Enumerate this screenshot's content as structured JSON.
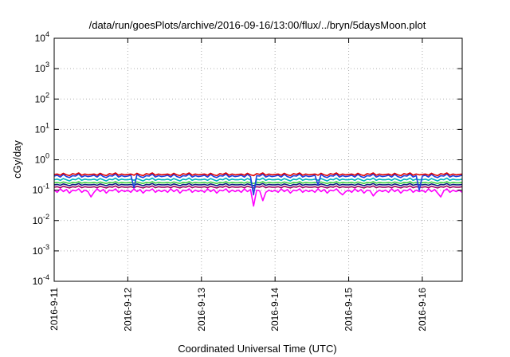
{
  "chart_data": {
    "type": "line",
    "title": "/data/run/goesPlots/archive/2016-09-16/13:00/flux/../bryn/5daysMoon.plot",
    "xlabel": "Coordinated Universal Time (UTC)",
    "ylabel": "cGy/day",
    "yscale": "log",
    "ylim": [
      0.0001,
      10000
    ],
    "xlim": [
      "2016-09-11 00:00",
      "2016-09-16 13:00"
    ],
    "grid": true,
    "legend": "none",
    "yticks": [
      {
        "base": "10",
        "exp": "-4",
        "value": 0.0001
      },
      {
        "base": "10",
        "exp": "-3",
        "value": 0.001
      },
      {
        "base": "10",
        "exp": "-2",
        "value": 0.01
      },
      {
        "base": "10",
        "exp": "-1",
        "value": 0.1
      },
      {
        "base": "10",
        "exp": "0",
        "value": 1
      },
      {
        "base": "10",
        "exp": "1",
        "value": 10
      },
      {
        "base": "10",
        "exp": "2",
        "value": 100
      },
      {
        "base": "10",
        "exp": "3",
        "value": 1000
      },
      {
        "base": "10",
        "exp": "4",
        "value": 10000
      }
    ],
    "xticks": [
      "2016-9-11",
      "2016-9-12",
      "2016-9-13",
      "2016-9-14",
      "2016-9-15",
      "2016-9-16"
    ],
    "series": [
      {
        "color": "#e00000",
        "baseline": 0.33,
        "pattern": [
          0.33,
          0.34,
          0.31,
          0.36,
          0.32,
          0.3,
          0.35,
          0.33,
          0.37,
          0.31,
          0.34,
          0.32
        ],
        "dips": []
      },
      {
        "color": "#2040e0",
        "baseline": 0.29,
        "pattern": [
          0.29,
          0.31,
          0.27,
          0.33,
          0.28,
          0.26,
          0.3,
          0.29,
          0.34,
          0.27,
          0.3,
          0.28
        ],
        "dips": [
          [
            "2016-09-12 02:00",
            0.12
          ],
          [
            "2016-09-13 17:00",
            0.07
          ],
          [
            "2016-09-14 14:00",
            0.15
          ],
          [
            "2016-09-15 23:00",
            0.1
          ]
        ]
      },
      {
        "color": "#00b0c0",
        "baseline": 0.22,
        "pattern": [
          0.22,
          0.23,
          0.21,
          0.24,
          0.22,
          0.2,
          0.23,
          0.22,
          0.25,
          0.21,
          0.23,
          0.22
        ],
        "dips": [
          [
            "2016-09-13 17:00",
            0.08
          ]
        ]
      },
      {
        "color": "#40d040",
        "baseline": 0.175,
        "pattern": [
          0.175,
          0.18,
          0.17,
          0.185,
          0.175,
          0.165,
          0.18,
          0.175,
          0.19,
          0.17,
          0.18,
          0.175
        ],
        "dips": []
      },
      {
        "color": "#102080",
        "baseline": 0.15,
        "pattern": [
          0.15,
          0.155,
          0.145,
          0.16,
          0.15,
          0.14,
          0.155,
          0.15,
          0.165,
          0.145,
          0.155,
          0.15
        ],
        "dips": []
      },
      {
        "color": "#a00060",
        "baseline": 0.125,
        "pattern": [
          0.125,
          0.13,
          0.12,
          0.135,
          0.125,
          0.118,
          0.13,
          0.125,
          0.138,
          0.12,
          0.13,
          0.125
        ],
        "dips": []
      },
      {
        "color": "#ff00ff",
        "baseline": 0.1,
        "pattern": [
          0.1,
          0.085,
          0.11,
          0.09,
          0.105,
          0.08,
          0.1,
          0.095,
          0.11,
          0.085,
          0.1,
          0.09
        ],
        "dips": [
          [
            "2016-09-11 12:00",
            0.06
          ],
          [
            "2016-09-12 17:00",
            0.08
          ],
          [
            "2016-09-13 17:00",
            0.03
          ],
          [
            "2016-09-13 20:00",
            0.045
          ],
          [
            "2016-09-14 22:00",
            0.07
          ],
          [
            "2016-09-15 08:00",
            0.065
          ],
          [
            "2016-09-16 06:00",
            0.06
          ]
        ]
      }
    ]
  }
}
